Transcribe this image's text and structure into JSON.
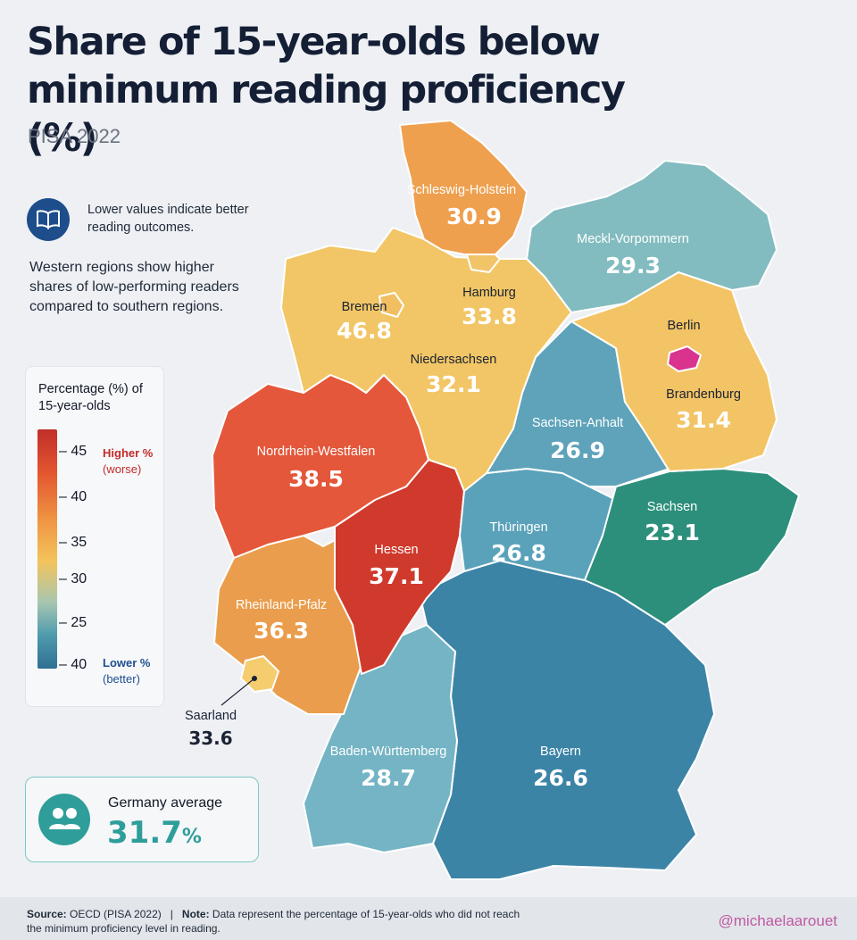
{
  "title": "Share of 15-year-olds below minimum reading proficiency (%)",
  "subtitle": "PISA 2022",
  "note": "Lower values indicate better reading outcomes.",
  "west_note": "Western regions show higher shares of low-performing readers compared to southern regions.",
  "legend": {
    "title": "Percentage (%) of 15-year-olds",
    "ticks": [
      "45",
      "40",
      "35",
      "30",
      "25",
      "40"
    ],
    "high_label": "Higher %",
    "high_sub": "(worse)",
    "low_label": "Lower %",
    "low_sub": "(better)"
  },
  "regions": [
    {
      "name": "Schleswig-Holstein",
      "value": "30.9",
      "color": "#eea04f"
    },
    {
      "name": "Meckl-Vorpommern",
      "value": "29.3",
      "color": "#82bcc0"
    },
    {
      "name": "Hamburg",
      "value": "33.8",
      "color": "#f1c468"
    },
    {
      "name": "Bremen",
      "value": "46.8",
      "color": "#f1bf62"
    },
    {
      "name": "Niedersachsen",
      "value": "32.1",
      "color": "#f2c666"
    },
    {
      "name": "Berlin",
      "value": "",
      "color": "#d9338e"
    },
    {
      "name": "Brandenburg",
      "value": "31.4",
      "color": "#f3c465"
    },
    {
      "name": "Sachsen-Anhalt",
      "value": "26.9",
      "color": "#5ea3ba"
    },
    {
      "name": "Nordrhein-Westfalen",
      "value": "38.5",
      "color": "#e4573a"
    },
    {
      "name": "Sachsen",
      "value": "23.1",
      "color": "#2c8f7c"
    },
    {
      "name": "Thüringen",
      "value": "26.8",
      "color": "#5aa2ba"
    },
    {
      "name": "Hessen",
      "value": "37.1",
      "color": "#cf3a2c"
    },
    {
      "name": "Rheinland-Pfalz",
      "value": "36.3",
      "color": "#ea9d4c"
    },
    {
      "name": "Saarland",
      "value": "33.6",
      "color": "#f5cc6e"
    },
    {
      "name": "Baden-Württemberg",
      "value": "28.7",
      "color": "#74b4c4"
    },
    {
      "name": "Bayern",
      "value": "26.6",
      "color": "#3c84a6"
    }
  ],
  "average": {
    "label": "Germany average",
    "value": "31.7",
    "unit": "%"
  },
  "footer": {
    "source_label": "Source:",
    "source_text": "OECD (PISA 2022)",
    "separator": "|",
    "note_label": "Note:",
    "note_text": "Data represent the percentage of 15-year-olds who did not reach the minimum proficiency level in reading."
  },
  "handle": "@michaelaarouet",
  "colors": {
    "title": "#141f35",
    "accent_teal": "#2f9e9a",
    "icon_blue": "#1d4d8b"
  },
  "icons": {
    "note": "open-book-icon",
    "average": "people-icon"
  }
}
